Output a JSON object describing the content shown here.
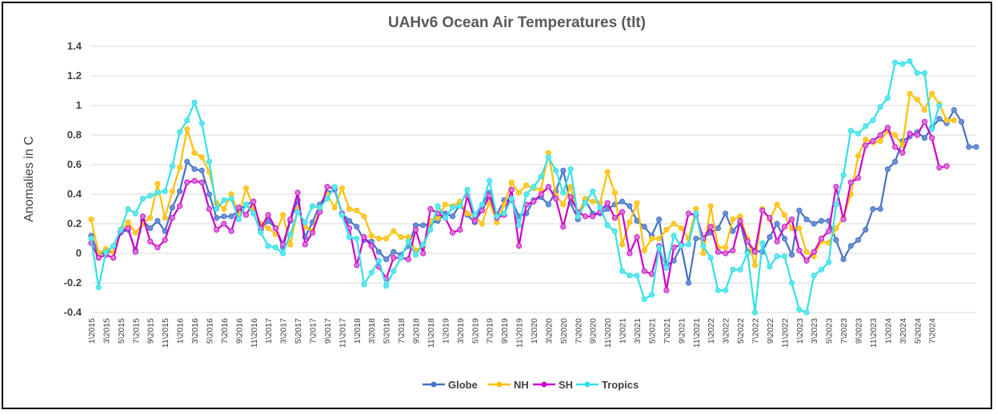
{
  "chart_data": {
    "type": "line",
    "title": "UAHv6 Ocean Air Temperatures (tlt)",
    "xlabel": "",
    "ylabel": "Anomalies in C",
    "ylim": [
      -0.4,
      1.4
    ],
    "yticks": [
      "1.4",
      "1.2",
      "1",
      "0.8",
      "0.6",
      "0.4",
      "0.2",
      "0",
      "-0.2",
      "-0.4"
    ],
    "ytick_values": [
      1.4,
      1.2,
      1.0,
      0.8,
      0.6,
      0.4,
      0.2,
      0,
      -0.2,
      -0.4
    ],
    "grid": "horizontal",
    "legend_position": "bottom",
    "x_tick_labels": [
      "1\\2015",
      "3\\2015",
      "5\\2015",
      "7\\2015",
      "9\\2015",
      "11\\2015",
      "1\\2016",
      "3\\2016",
      "5\\2016",
      "7\\2016",
      "9\\2016",
      "11\\2016",
      "1\\2017",
      "3\\2017",
      "5\\2017",
      "7\\2017",
      "9\\2017",
      "11\\2017",
      "1\\2018",
      "3\\2018",
      "5\\2018",
      "7\\2018",
      "9\\2018",
      "11\\2018",
      "1\\2019",
      "3\\2019",
      "5\\2019",
      "7\\2019",
      "9\\2019",
      "11\\2019",
      "1\\2020",
      "3\\2020",
      "5\\2020",
      "7\\2020",
      "9\\2020",
      "11\\2020",
      "1\\2021",
      "3\\2021",
      "5\\2021",
      "7\\2021",
      "9\\2021",
      "11\\2021",
      "1\\2022",
      "3\\2022",
      "5\\2022",
      "7\\2022",
      "9\\2022",
      "11\\2022",
      "1\\2023",
      "3\\2023",
      "5\\2023",
      "7\\2023",
      "9\\2023",
      "11\\2023",
      "1\\2024",
      "3\\2024",
      "5\\2024",
      "7\\2024"
    ],
    "series": [
      {
        "name": "Globe",
        "color": "#4472C4",
        "values": [
          0.12,
          -0.01,
          0.01,
          0.01,
          0.14,
          0.16,
          0.02,
          0.22,
          0.17,
          0.22,
          0.15,
          0.31,
          0.42,
          0.62,
          0.57,
          0.56,
          0.4,
          0.24,
          0.25,
          0.25,
          0.29,
          0.33,
          0.35,
          0.16,
          0.22,
          0.17,
          0.04,
          0.22,
          0.36,
          0.11,
          0.21,
          0.33,
          0.41,
          0.43,
          0.27,
          0.22,
          0.18,
          0.09,
          0.08,
          0.01,
          -0.04,
          0.01,
          -0.01,
          0.05,
          0.19,
          0.19,
          0.2,
          0.22,
          0.27,
          0.25,
          0.33,
          0.26,
          0.21,
          0.33,
          0.41,
          0.26,
          0.36,
          0.36,
          0.25,
          0.27,
          0.36,
          0.38,
          0.33,
          0.42,
          0.56,
          0.34,
          0.23,
          0.36,
          0.27,
          0.27,
          0.3,
          0.33,
          0.35,
          0.32,
          0.22,
          0.18,
          0.12,
          0.23,
          -0.08,
          -0.05,
          0.05,
          -0.2,
          0.1,
          0.1,
          0.14,
          0.17,
          0.27,
          0.15,
          0.21,
          0.01,
          0.02,
          0.01,
          0.11,
          0.2,
          0.1,
          -0.01,
          0.29,
          0.23,
          0.2,
          0.22,
          0.22,
          0.09,
          -0.04,
          0.05,
          0.09,
          0.16,
          0.3,
          0.3,
          0.57,
          0.62,
          0.76,
          0.79,
          0.82,
          0.78,
          0.85,
          0.91,
          0.88,
          0.97,
          0.89,
          0.72,
          0.72
        ]
      },
      {
        "name": "NH",
        "color": "#FFC000",
        "values": [
          0.23,
          0.0,
          0.03,
          0.01,
          0.15,
          0.21,
          0.14,
          0.2,
          0.24,
          0.47,
          0.24,
          0.42,
          0.58,
          0.84,
          0.68,
          0.65,
          0.55,
          0.34,
          0.3,
          0.4,
          0.26,
          0.44,
          0.31,
          0.2,
          0.17,
          0.13,
          0.26,
          0.06,
          0.3,
          0.18,
          0.15,
          0.3,
          0.4,
          0.31,
          0.44,
          0.3,
          0.29,
          0.25,
          0.12,
          0.1,
          0.1,
          0.15,
          0.11,
          0.11,
          0.02,
          0.05,
          0.22,
          0.24,
          0.33,
          0.32,
          0.35,
          0.27,
          0.25,
          0.2,
          0.35,
          0.21,
          0.33,
          0.48,
          0.41,
          0.46,
          0.44,
          0.43,
          0.68,
          0.39,
          0.33,
          0.45,
          0.27,
          0.37,
          0.35,
          0.34,
          0.55,
          0.41,
          0.06,
          0.21,
          0.34,
          0.02,
          0.1,
          0.1,
          0.16,
          0.2,
          0.17,
          0.1,
          0.3,
          0.0,
          0.32,
          0.04,
          0.04,
          0.23,
          0.25,
          0.1,
          -0.08,
          0.3,
          0.23,
          0.33,
          0.26,
          0.17,
          0.17,
          0.01,
          -0.02,
          0.08,
          0.07,
          0.17,
          0.24,
          0.4,
          0.66,
          0.77,
          0.75,
          0.76,
          0.83,
          0.8,
          0.73,
          1.08,
          1.04,
          0.97,
          1.08,
          1.01,
          0.9,
          0.9
        ]
      },
      {
        "name": "SH",
        "color": "#CC00CC",
        "values": [
          0.07,
          -0.03,
          -0.01,
          -0.03,
          0.15,
          0.17,
          0.01,
          0.25,
          0.08,
          0.04,
          0.09,
          0.24,
          0.32,
          0.48,
          0.49,
          0.48,
          0.3,
          0.16,
          0.2,
          0.15,
          0.31,
          0.26,
          0.35,
          0.17,
          0.26,
          0.17,
          0.06,
          0.23,
          0.41,
          0.06,
          0.14,
          0.28,
          0.45,
          0.44,
          0.27,
          0.17,
          -0.08,
          0.11,
          0.05,
          -0.09,
          -0.17,
          -0.03,
          -0.03,
          -0.04,
          0.16,
          -0.0,
          0.3,
          0.27,
          0.24,
          0.14,
          0.16,
          0.39,
          0.22,
          0.29,
          0.39,
          0.24,
          0.26,
          0.43,
          0.05,
          0.33,
          0.35,
          0.4,
          0.45,
          0.37,
          0.18,
          0.38,
          0.28,
          0.25,
          0.25,
          0.28,
          0.34,
          0.24,
          0.28,
          0.0,
          0.11,
          -0.12,
          -0.14,
          0.05,
          -0.25,
          0.04,
          0.06,
          0.27,
          0.26,
          0.1,
          0.18,
          0.01,
          0.0,
          0.02,
          0.22,
          0.08,
          0.01,
          0.29,
          0.24,
          0.08,
          0.18,
          0.23,
          0.02,
          -0.05,
          0.01,
          0.1,
          0.15,
          0.45,
          0.23,
          0.48,
          0.51,
          0.73,
          0.76,
          0.8,
          0.85,
          0.72,
          0.68,
          0.81,
          0.8,
          0.89,
          0.78,
          0.58,
          0.59
        ]
      },
      {
        "name": "Tropics",
        "color": "#33E0E8",
        "values": [
          0.1,
          -0.23,
          0.01,
          0.05,
          0.16,
          0.3,
          0.27,
          0.37,
          0.39,
          0.41,
          0.42,
          0.59,
          0.82,
          0.9,
          1.02,
          0.88,
          0.62,
          0.3,
          0.36,
          0.37,
          0.23,
          0.33,
          0.27,
          0.14,
          0.05,
          0.04,
          0.0,
          0.13,
          0.28,
          0.21,
          0.32,
          0.31,
          0.37,
          0.45,
          0.26,
          0.11,
          0.1,
          -0.21,
          -0.13,
          -0.05,
          -0.22,
          -0.12,
          -0.03,
          0.08,
          -0.01,
          0.06,
          0.16,
          0.32,
          0.24,
          0.31,
          0.32,
          0.43,
          0.26,
          0.33,
          0.49,
          0.25,
          0.27,
          0.37,
          0.19,
          0.4,
          0.45,
          0.52,
          0.65,
          0.56,
          0.41,
          0.57,
          0.25,
          0.34,
          0.42,
          0.31,
          0.19,
          0.15,
          -0.12,
          -0.15,
          -0.15,
          -0.31,
          -0.28,
          0.04,
          -0.1,
          0.12,
          0.05,
          0.06,
          0.27,
          0.05,
          -0.03,
          -0.25,
          -0.25,
          -0.11,
          -0.11,
          0.0,
          -0.4,
          0.07,
          -0.09,
          -0.02,
          -0.02,
          -0.2,
          -0.38,
          -0.4,
          -0.15,
          -0.11,
          -0.06,
          0.33,
          0.53,
          0.83,
          0.81,
          0.86,
          0.9,
          0.99,
          1.05,
          1.29,
          1.28,
          1.3,
          1.22,
          1.22,
          0.84,
          1.0
        ]
      }
    ]
  }
}
